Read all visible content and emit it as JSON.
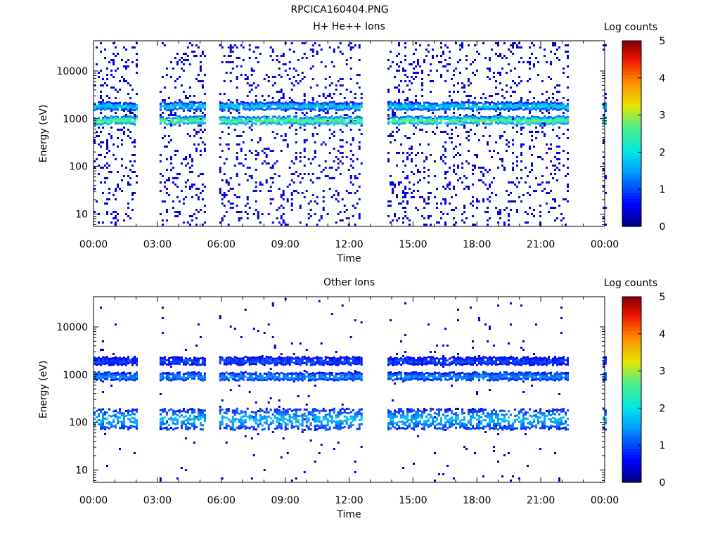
{
  "title": "RPCICA160404.PNG",
  "chart_data": [
    {
      "type": "heatmap",
      "title": "H+ He++ Ions",
      "xlabel": "Time",
      "ylabel": "Energy (eV)",
      "x_ticks": [
        "00:00",
        "03:00",
        "06:00",
        "09:00",
        "12:00",
        "15:00",
        "18:00",
        "21:00",
        "00:00"
      ],
      "x_range_hours": [
        0,
        24
      ],
      "yscale": "log",
      "y_ticks": [
        "10",
        "100",
        "1000",
        "10000"
      ],
      "y_range": [
        5.5,
        43000
      ],
      "colorbar": {
        "label": "Log counts",
        "ticks": [
          "0",
          "1",
          "2",
          "3",
          "4",
          "5"
        ],
        "range": [
          0,
          5
        ]
      },
      "data_segments_hours": [
        [
          0,
          2
        ],
        [
          3.1,
          5.2
        ],
        [
          5.9,
          12.6
        ],
        [
          13.8,
          22.3
        ],
        [
          23.9,
          24
        ]
      ],
      "bands": [
        {
          "center_energy_eV": 950,
          "level_log_counts": 2.8,
          "description": "main proton band"
        },
        {
          "center_energy_eV": 1900,
          "level_log_counts": 1.8,
          "description": "secondary band"
        }
      ],
      "background_noise": {
        "range_eV": [
          5.5,
          43000
        ],
        "level_log_counts": 0.3
      }
    },
    {
      "type": "heatmap",
      "title": "Other Ions",
      "xlabel": "Time",
      "ylabel": "Energy (eV)",
      "x_ticks": [
        "00:00",
        "03:00",
        "06:00",
        "09:00",
        "12:00",
        "15:00",
        "18:00",
        "21:00",
        "00:00"
      ],
      "x_range_hours": [
        0,
        24
      ],
      "yscale": "log",
      "y_ticks": [
        "10",
        "100",
        "1000",
        "10000"
      ],
      "y_range": [
        5.5,
        43000
      ],
      "colorbar": {
        "label": "Log counts",
        "ticks": [
          "0",
          "1",
          "2",
          "3",
          "4",
          "5"
        ],
        "range": [
          0,
          5
        ]
      },
      "data_segments_hours": [
        [
          0,
          2
        ],
        [
          3.1,
          5.2
        ],
        [
          5.9,
          12.6
        ],
        [
          13.8,
          22.3
        ],
        [
          23.9,
          24
        ]
      ],
      "bands": [
        {
          "center_energy_eV": 950,
          "level_log_counts": 1.3,
          "description": "upper band"
        },
        {
          "center_energy_eV": 2000,
          "level_log_counts": 0.8,
          "description": "top band"
        },
        {
          "center_energy_eV": 120,
          "level_log_counts": 1.5,
          "description": "low energy band"
        }
      ],
      "background_noise": {
        "range_eV": [
          5.5,
          43000
        ],
        "level_log_counts": 0.2
      }
    }
  ]
}
